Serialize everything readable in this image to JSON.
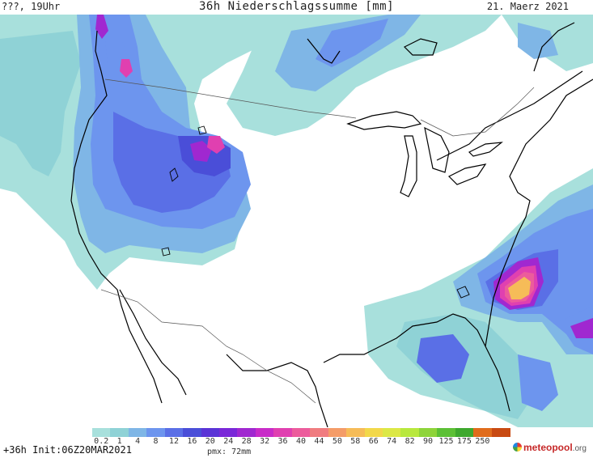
{
  "header": {
    "left": "???, 19Uhr",
    "title": "36h Niederschlagssumme [mm]",
    "date": "21. Maerz 2021"
  },
  "legend": {
    "labels": [
      "0.2",
      "1",
      "4",
      "8",
      "12",
      "16",
      "20",
      "24",
      "28",
      "32",
      "36",
      "40",
      "44",
      "50",
      "58",
      "66",
      "74",
      "82",
      "90",
      "125",
      "175",
      "250"
    ],
    "colors": [
      "#a8e0dc",
      "#8fd2d6",
      "#7fb6e6",
      "#6d95ee",
      "#5a6fe6",
      "#4a4ed8",
      "#5a34d6",
      "#7a28d8",
      "#a028d0",
      "#c82cc8",
      "#e040b0",
      "#ec5c9c",
      "#f07c80",
      "#f49c68",
      "#f6bc58",
      "#f2d84a",
      "#dce846",
      "#b8e83e",
      "#8ed43a",
      "#5cc036",
      "#3ea82e",
      "#e06c1c",
      "#c84a12"
    ]
  },
  "footer": {
    "init": "+36h Init:06Z20MAR2021",
    "pmx": "pmx: 72mm",
    "brand_main": "meteopool",
    "brand_tld": ".org"
  },
  "map_colors": {
    "ocean": "#ffffff",
    "light": "#a8e0dc",
    "mid": "#7fb6e6",
    "blue": "#6d95ee",
    "deep": "#4a4ed8",
    "purple": "#a028d0",
    "magenta": "#e040b0",
    "pink": "#ec5c9c",
    "yellow": "#f6bc58",
    "coast": "#000000",
    "border": "#555555"
  }
}
